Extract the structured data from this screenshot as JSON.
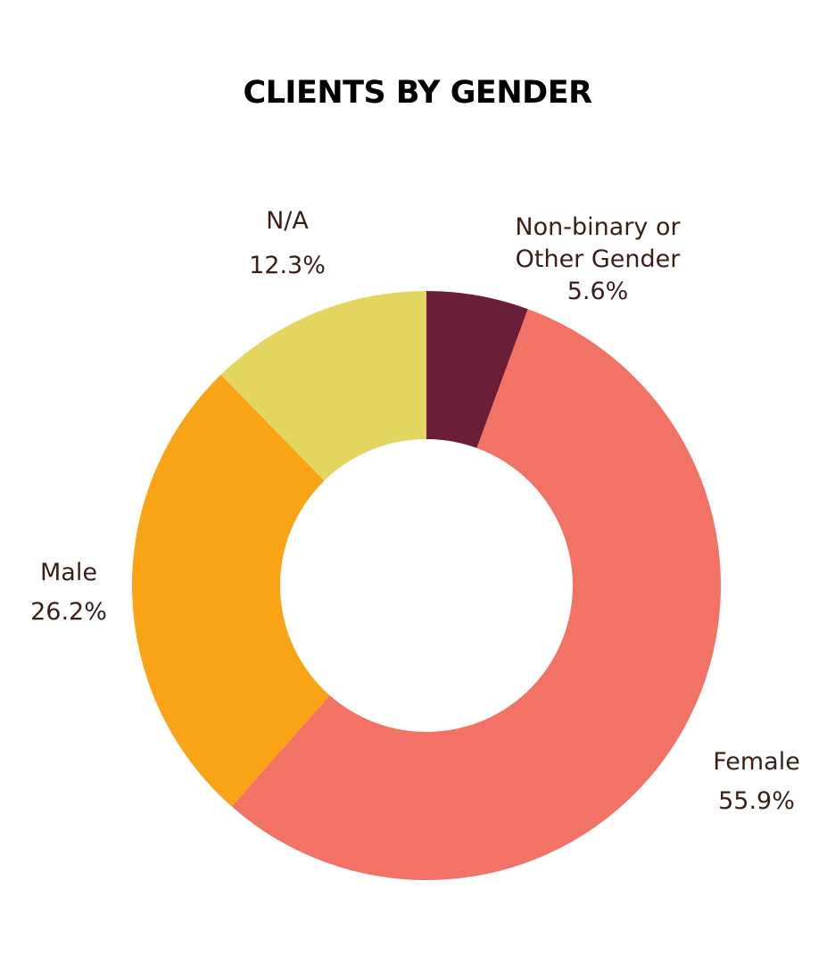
{
  "chart_data": {
    "type": "pie",
    "variant": "donut",
    "title": "CLIENTS BY GENDER",
    "categories": [
      "Non-binary or Other Gender",
      "Female",
      "Male",
      "N/A"
    ],
    "values": [
      5.6,
      55.9,
      26.2,
      12.3
    ],
    "value_labels": [
      "5.6%",
      "55.9%",
      "26.2%",
      "12.3%"
    ],
    "label_lines": [
      [
        "Non-binary or",
        "Other Gender",
        "5.6%"
      ],
      [
        "Female",
        "55.9%"
      ],
      [
        "Male",
        "26.2%"
      ],
      [
        "N/A",
        "12.3%"
      ]
    ],
    "colors": [
      "#6b1e38",
      "#f27265",
      "#f9a415",
      "#e3d660"
    ],
    "start": "top",
    "direction": "clockwise",
    "legend": "none"
  }
}
